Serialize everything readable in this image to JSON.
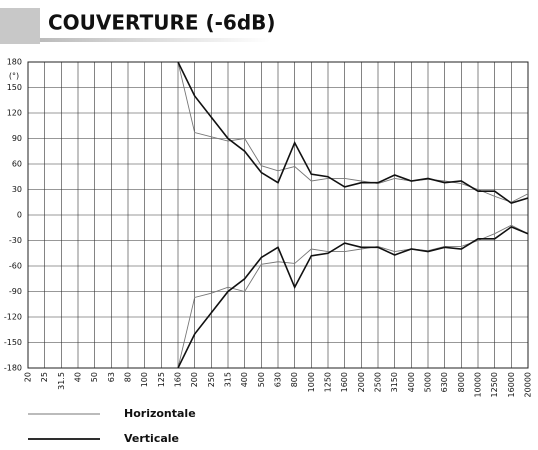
{
  "chart_data": {
    "type": "line",
    "title": "COUVERTURE (-6dB)",
    "y_label": "(°)",
    "categories": [
      "20",
      "25",
      "31.5",
      "40",
      "50",
      "63",
      "80",
      "100",
      "125",
      "160",
      "200",
      "250",
      "315",
      "400",
      "500",
      "630",
      "800",
      "1000",
      "1250",
      "1600",
      "2000",
      "2500",
      "3150",
      "4000",
      "5000",
      "6300",
      "8000",
      "10000",
      "12500",
      "16000",
      "20000"
    ],
    "ylim": [
      -180,
      180
    ],
    "yticks": [
      -180,
      -150,
      -120,
      -90,
      -60,
      -30,
      0,
      30,
      60,
      90,
      120,
      150,
      180
    ],
    "grid": true,
    "series": [
      {
        "name": "Horizontale",
        "color": "#777777",
        "values": [
          null,
          null,
          null,
          null,
          null,
          null,
          null,
          null,
          null,
          180,
          97,
          92,
          87,
          90,
          58,
          52,
          57,
          40,
          43,
          43,
          40,
          37,
          43,
          40,
          42,
          40,
          37,
          30,
          22,
          15,
          25
        ],
        "lower": [
          null,
          null,
          null,
          null,
          null,
          null,
          null,
          null,
          null,
          -180,
          -97,
          -92,
          -85,
          -90,
          -58,
          -55,
          -57,
          -40,
          -43,
          -43,
          -40,
          -37,
          -43,
          -40,
          -42,
          -37,
          -37,
          -30,
          -22,
          -12,
          -22
        ]
      },
      {
        "name": "Verticale",
        "color": "#111111",
        "values": [
          null,
          null,
          null,
          null,
          null,
          null,
          null,
          null,
          null,
          180,
          140,
          115,
          90,
          75,
          50,
          38,
          85,
          48,
          45,
          33,
          38,
          38,
          47,
          40,
          43,
          38,
          40,
          28,
          28,
          14,
          20
        ],
        "lower": [
          null,
          null,
          null,
          null,
          null,
          null,
          null,
          null,
          null,
          -180,
          -140,
          -115,
          -90,
          -75,
          -50,
          -38,
          -85,
          -48,
          -45,
          -33,
          -38,
          -38,
          -47,
          -40,
          -43,
          -38,
          -40,
          -28,
          -28,
          -14,
          -22
        ]
      }
    ]
  }
}
